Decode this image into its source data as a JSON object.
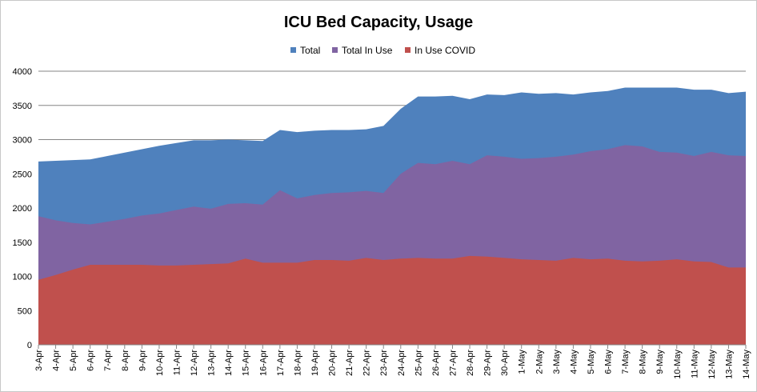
{
  "chart_data": {
    "type": "area",
    "title": "ICU Bed Capacity, Usage",
    "xlabel": "",
    "ylabel": "",
    "ylim": [
      0,
      4000
    ],
    "yticks": [
      "0",
      "500",
      "1000",
      "1500",
      "2000",
      "2500",
      "3000",
      "3500",
      "4000"
    ],
    "grid": true,
    "legend_position": "top",
    "categories": [
      "3-Apr",
      "4-Apr",
      "5-Apr",
      "6-Apr",
      "7-Apr",
      "8-Apr",
      "9-Apr",
      "10-Apr",
      "11-Apr",
      "12-Apr",
      "13-Apr",
      "14-Apr",
      "15-Apr",
      "16-Apr",
      "17-Apr",
      "18-Apr",
      "19-Apr",
      "20-Apr",
      "21-Apr",
      "22-Apr",
      "23-Apr",
      "24-Apr",
      "25-Apr",
      "26-Apr",
      "27-Apr",
      "28-Apr",
      "29-Apr",
      "30-Apr",
      "1-May",
      "2-May",
      "3-May",
      "4-May",
      "5-May",
      "6-May",
      "7-May",
      "8-May",
      "9-May",
      "10-May",
      "11-May",
      "12-May",
      "13-May",
      "14-May"
    ],
    "series": [
      {
        "name": "Total",
        "color": "#4f81bd",
        "values": [
          2680,
          2690,
          2700,
          2710,
          2760,
          2810,
          2860,
          2910,
          2950,
          2990,
          2990,
          3000,
          2990,
          2980,
          3140,
          3110,
          3130,
          3140,
          3140,
          3150,
          3200,
          3450,
          3630,
          3630,
          3640,
          3590,
          3660,
          3650,
          3690,
          3670,
          3680,
          3660,
          3690,
          3710,
          3760,
          3760,
          3760,
          3760,
          3730,
          3730,
          3680,
          3700
        ]
      },
      {
        "name": "Total In Use",
        "color": "#8064a2",
        "values": [
          1880,
          1820,
          1780,
          1760,
          1800,
          1840,
          1890,
          1920,
          1970,
          2020,
          1990,
          2060,
          2070,
          2050,
          2260,
          2140,
          2190,
          2220,
          2230,
          2250,
          2220,
          2500,
          2660,
          2640,
          2690,
          2640,
          2770,
          2750,
          2720,
          2730,
          2750,
          2780,
          2830,
          2860,
          2920,
          2900,
          2820,
          2810,
          2760,
          2820,
          2770,
          2760
        ]
      },
      {
        "name": "In Use COVID",
        "color": "#c0504d",
        "values": [
          950,
          1020,
          1100,
          1170,
          1170,
          1170,
          1170,
          1160,
          1160,
          1170,
          1180,
          1190,
          1260,
          1200,
          1200,
          1200,
          1240,
          1240,
          1230,
          1270,
          1240,
          1260,
          1270,
          1260,
          1260,
          1300,
          1290,
          1270,
          1250,
          1240,
          1230,
          1270,
          1250,
          1260,
          1230,
          1220,
          1230,
          1250,
          1220,
          1210,
          1130,
          1130
        ]
      }
    ]
  }
}
